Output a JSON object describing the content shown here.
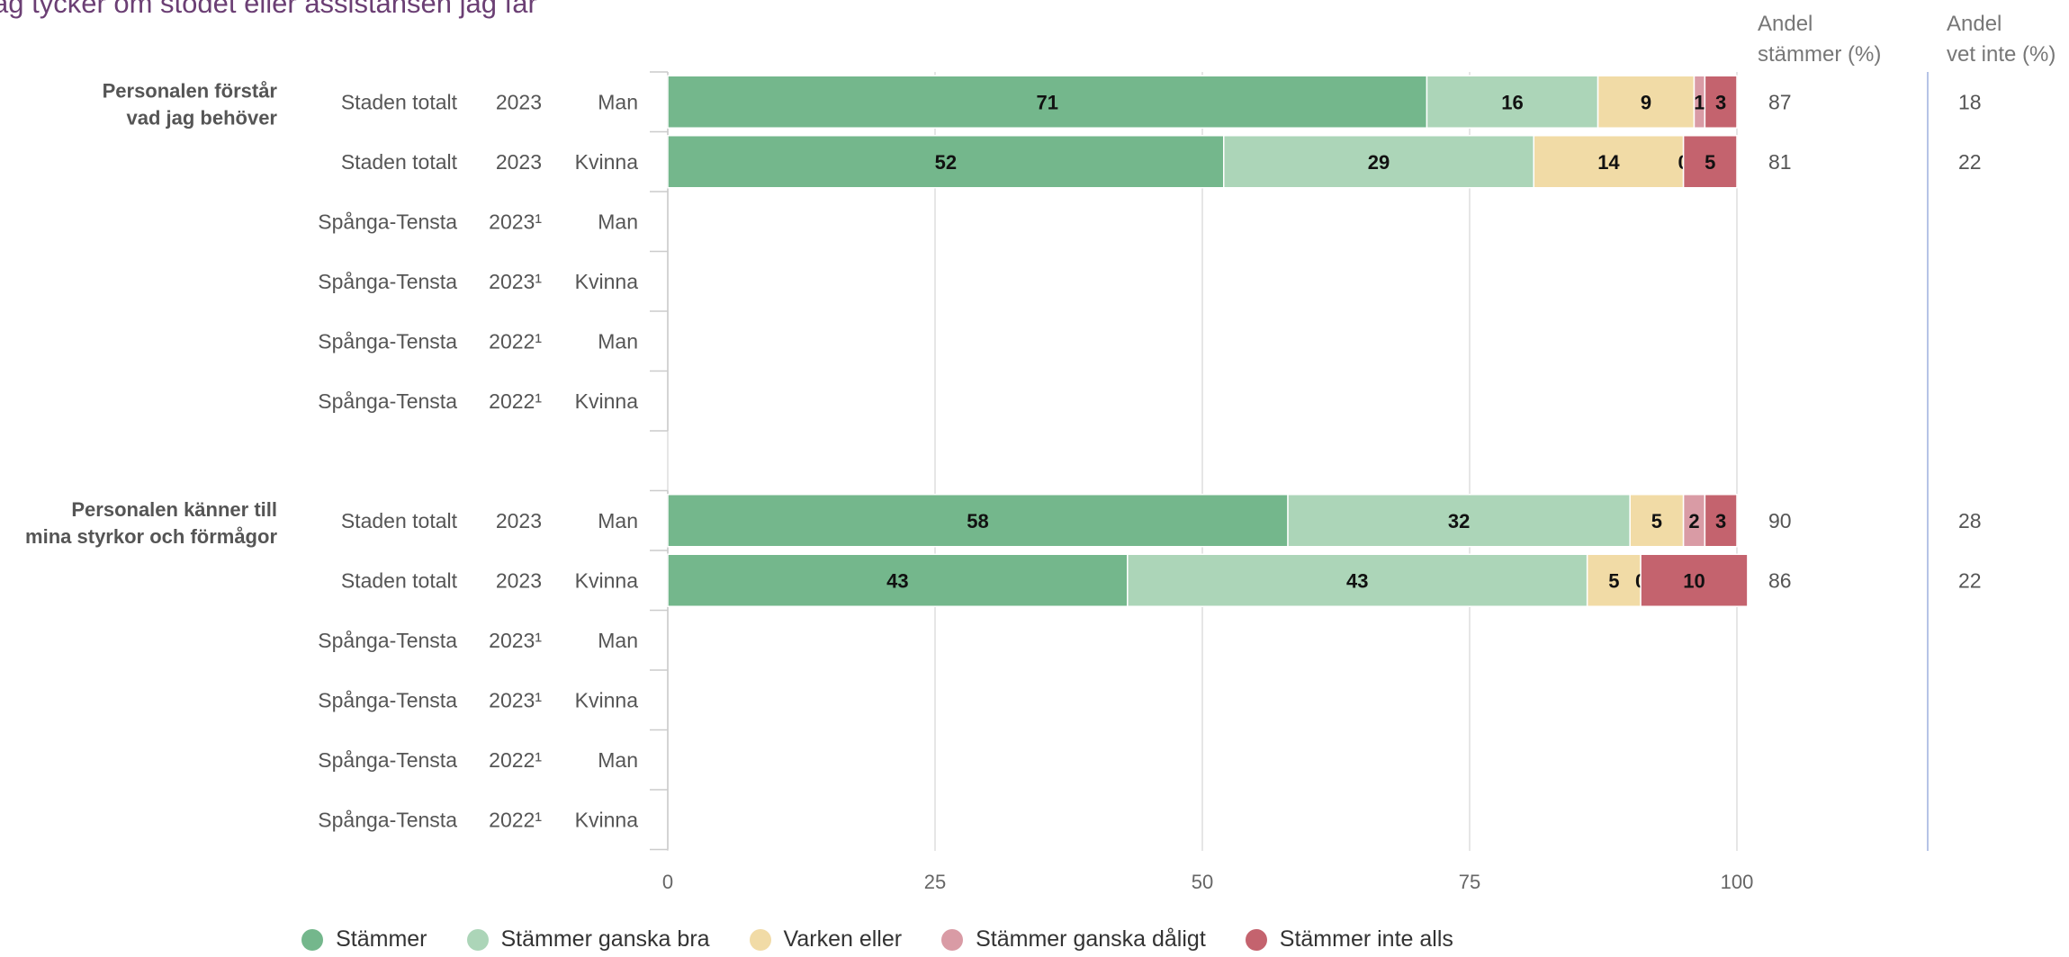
{
  "title": "ag tycker om stödet eller assistansen jag får",
  "right_columns": {
    "agree_header": [
      "Andel",
      "stämmer (%)"
    ],
    "unknown_header": [
      "Andel",
      "vet inte (%)"
    ]
  },
  "colors": {
    "Stämmer": "#74b78c",
    "Stämmer ganska bra": "#acd5b8",
    "Varken eller": "#f1dba6",
    "Stämmer ganska dåligt": "#d99ba5",
    "Stämmer inte alls": "#c4636e"
  },
  "legend": [
    "Stämmer",
    "Stämmer ganska bra",
    "Varken eller",
    "Stämmer ganska dåligt",
    "Stämmer inte alls"
  ],
  "chart_data": {
    "type": "bar",
    "orientation": "horizontal",
    "stacked": true,
    "xlim": [
      0,
      100
    ],
    "x_ticks": [
      0,
      25,
      50,
      75,
      100
    ],
    "grid": true,
    "legend_position": "bottom",
    "series_names": [
      "Stämmer",
      "Stämmer ganska bra",
      "Varken eller",
      "Stämmer ganska dåligt",
      "Stämmer inte alls"
    ],
    "groups": [
      {
        "question": [
          "Personalen förstår",
          "vad jag behöver"
        ],
        "rows": [
          {
            "area": "Staden totalt",
            "year": "2023",
            "gender": "Man",
            "values": [
              71,
              16,
              9,
              1,
              3
            ],
            "agree": "87",
            "unknown": "18"
          },
          {
            "area": "Staden totalt",
            "year": "2023",
            "gender": "Kvinna",
            "values": [
              52,
              29,
              14,
              0,
              5
            ],
            "agree": "81",
            "unknown": "22"
          },
          {
            "area": "Spånga-Tensta",
            "year": "2023¹",
            "gender": "Man",
            "values": null,
            "agree": "",
            "unknown": ""
          },
          {
            "area": "Spånga-Tensta",
            "year": "2023¹",
            "gender": "Kvinna",
            "values": null,
            "agree": "",
            "unknown": ""
          },
          {
            "area": "Spånga-Tensta",
            "year": "2022¹",
            "gender": "Man",
            "values": null,
            "agree": "",
            "unknown": ""
          },
          {
            "area": "Spånga-Tensta",
            "year": "2022¹",
            "gender": "Kvinna",
            "values": null,
            "agree": "",
            "unknown": ""
          }
        ]
      },
      {
        "question": [
          "Personalen känner till",
          "mina styrkor och förmågor"
        ],
        "rows": [
          {
            "area": "Staden totalt",
            "year": "2023",
            "gender": "Man",
            "values": [
              58,
              32,
              5,
              2,
              3
            ],
            "agree": "90",
            "unknown": "28"
          },
          {
            "area": "Staden totalt",
            "year": "2023",
            "gender": "Kvinna",
            "values": [
              43,
              43,
              5,
              0,
              10
            ],
            "agree": "86",
            "unknown": "22"
          },
          {
            "area": "Spånga-Tensta",
            "year": "2023¹",
            "gender": "Man",
            "values": null,
            "agree": "",
            "unknown": ""
          },
          {
            "area": "Spånga-Tensta",
            "year": "2023¹",
            "gender": "Kvinna",
            "values": null,
            "agree": "",
            "unknown": ""
          },
          {
            "area": "Spånga-Tensta",
            "year": "2022¹",
            "gender": "Man",
            "values": null,
            "agree": "",
            "unknown": ""
          },
          {
            "area": "Spånga-Tensta",
            "year": "2022¹",
            "gender": "Kvinna",
            "values": null,
            "agree": "",
            "unknown": ""
          }
        ]
      }
    ]
  }
}
